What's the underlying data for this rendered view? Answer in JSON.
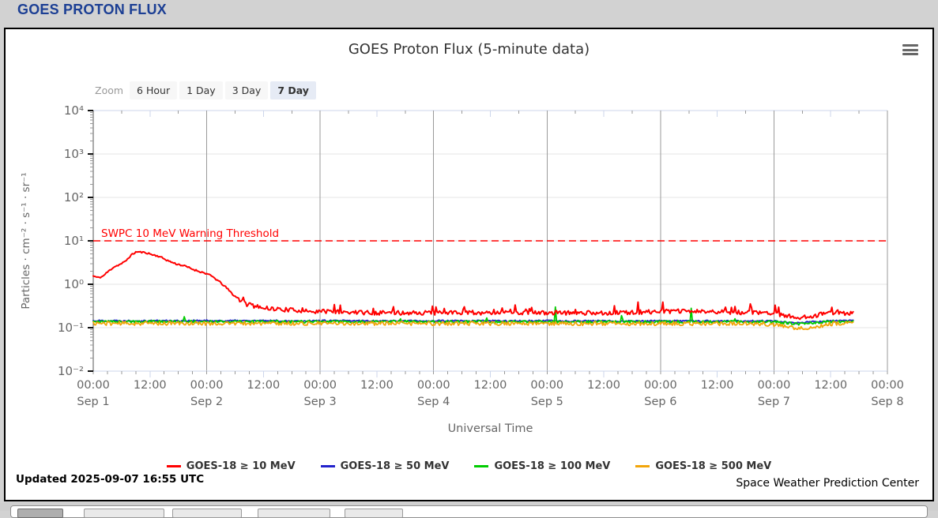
{
  "page": {
    "header_title": "GOES PROTON FLUX",
    "footer_updated": "Updated 2025-09-07 16:55 UTC",
    "footer_credit": "Space Weather Prediction Center"
  },
  "chart": {
    "title": "GOES Proton Flux (5-minute data)",
    "zoom_label": "Zoom",
    "zoom_buttons": [
      {
        "label": "6 Hour",
        "selected": false
      },
      {
        "label": "1 Day",
        "selected": false
      },
      {
        "label": "3 Day",
        "selected": false
      },
      {
        "label": "7 Day",
        "selected": true
      }
    ],
    "icons": {
      "context_menu": "hamburger-icon"
    }
  },
  "chart_data": {
    "type": "line",
    "title": "GOES Proton Flux (5-minute data)",
    "xlabel": "Universal Time",
    "ylabel": "Particles · cm⁻² · s⁻¹ · sr⁻¹",
    "y_scale": "log10",
    "ylim_exponents": [
      -2,
      4
    ],
    "y_ticks": [
      "10⁻²",
      "10⁻¹",
      "10⁰",
      "10¹",
      "10²",
      "10³",
      "10⁴"
    ],
    "x_range_days": 7,
    "x_ticks": [
      {
        "day": 0.0,
        "time": "00:00",
        "date": "Sep 1"
      },
      {
        "day": 0.5,
        "time": "12:00"
      },
      {
        "day": 1.0,
        "time": "00:00",
        "date": "Sep 2"
      },
      {
        "day": 1.5,
        "time": "12:00"
      },
      {
        "day": 2.0,
        "time": "00:00",
        "date": "Sep 3"
      },
      {
        "day": 2.5,
        "time": "12:00"
      },
      {
        "day": 3.0,
        "time": "00:00",
        "date": "Sep 4"
      },
      {
        "day": 3.5,
        "time": "12:00"
      },
      {
        "day": 4.0,
        "time": "00:00",
        "date": "Sep 5"
      },
      {
        "day": 4.5,
        "time": "12:00"
      },
      {
        "day": 5.0,
        "time": "00:00",
        "date": "Sep 6"
      },
      {
        "day": 5.5,
        "time": "12:00"
      },
      {
        "day": 6.0,
        "time": "00:00",
        "date": "Sep 7"
      },
      {
        "day": 6.5,
        "time": "12:00"
      },
      {
        "day": 7.0,
        "time": "00:00",
        "date": "Sep 8"
      }
    ],
    "threshold": {
      "label": "SWPC 10 MeV Warning Threshold",
      "value": 10,
      "color": "#ff0000"
    },
    "end_day": 6.704,
    "step_hours": 0.25,
    "legend_position": "bottom",
    "grid": true,
    "series": [
      {
        "name": "GOES-18 ≥ 10 MeV",
        "color": "#ff0000",
        "seed": 11,
        "noise_log": 0.05,
        "spike_prob": 0.09,
        "spike_log": 0.2,
        "keypoints": [
          [
            0,
            1.55
          ],
          [
            0.04,
            1.42
          ],
          [
            0.08,
            1.5
          ],
          [
            0.13,
            1.95
          ],
          [
            0.18,
            2.5
          ],
          [
            0.24,
            2.9
          ],
          [
            0.28,
            3.3
          ],
          [
            0.33,
            4.6
          ],
          [
            0.38,
            5.6
          ],
          [
            0.43,
            5.45
          ],
          [
            0.47,
            5.3
          ],
          [
            0.52,
            4.8
          ],
          [
            0.58,
            4.4
          ],
          [
            0.63,
            3.8
          ],
          [
            0.68,
            3.3
          ],
          [
            0.73,
            2.95
          ],
          [
            0.78,
            2.75
          ],
          [
            0.83,
            2.5
          ],
          [
            0.88,
            2.2
          ],
          [
            0.93,
            2.0
          ],
          [
            1.0,
            1.75
          ],
          [
            1.06,
            1.45
          ],
          [
            1.12,
            1.1
          ],
          [
            1.18,
            0.8
          ],
          [
            1.24,
            0.55
          ],
          [
            1.3,
            0.42
          ],
          [
            1.36,
            0.34
          ],
          [
            1.45,
            0.3
          ],
          [
            1.6,
            0.27
          ],
          [
            1.9,
            0.24
          ],
          [
            2.5,
            0.22
          ],
          [
            3.5,
            0.22
          ],
          [
            4.5,
            0.22
          ],
          [
            5.2,
            0.24
          ],
          [
            5.6,
            0.23
          ],
          [
            6.0,
            0.21
          ],
          [
            6.15,
            0.18
          ],
          [
            6.25,
            0.17
          ],
          [
            6.4,
            0.2
          ],
          [
            6.55,
            0.22
          ],
          [
            6.704,
            0.21
          ]
        ],
        "spikes": []
      },
      {
        "name": "GOES-18 ≥ 50 MeV",
        "color": "#2222cc",
        "seed": 22,
        "noise_log": 0.02,
        "spike_prob": 0,
        "spike_log": 0,
        "keypoints": [
          [
            0,
            0.145
          ],
          [
            6.0,
            0.142
          ],
          [
            6.2,
            0.128
          ],
          [
            6.4,
            0.14
          ],
          [
            6.704,
            0.148
          ]
        ],
        "spikes": []
      },
      {
        "name": "GOES-18 ≥ 100 MeV",
        "color": "#00cc00",
        "seed": 33,
        "noise_log": 0.03,
        "spike_prob": 0.012,
        "spike_log": 0.15,
        "keypoints": [
          [
            0,
            0.138
          ],
          [
            6.0,
            0.136
          ],
          [
            6.2,
            0.122
          ],
          [
            6.4,
            0.134
          ],
          [
            6.704,
            0.142
          ]
        ],
        "spikes": [
          [
            4.07,
            0.3
          ],
          [
            5.27,
            0.28
          ]
        ]
      },
      {
        "name": "GOES-18 ≥ 500 MeV",
        "color": "#f2a50a",
        "seed": 44,
        "noise_log": 0.045,
        "spike_prob": 0,
        "spike_log": 0,
        "keypoints": [
          [
            0,
            0.126
          ],
          [
            5.9,
            0.124
          ],
          [
            6.05,
            0.112
          ],
          [
            6.2,
            0.095
          ],
          [
            6.35,
            0.105
          ],
          [
            6.5,
            0.122
          ],
          [
            6.704,
            0.13
          ]
        ],
        "spikes": []
      }
    ]
  }
}
